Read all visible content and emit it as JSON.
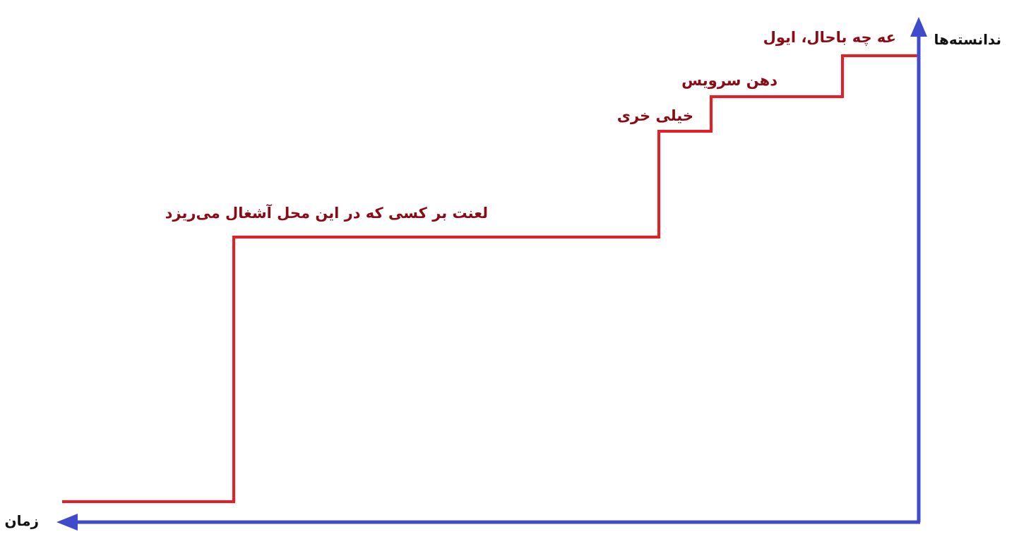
{
  "axes": {
    "y_label": "ندانسته‌ها",
    "x_label": "زمان",
    "color": "#3f4bcc"
  },
  "steps": {
    "color": "#ec1c24",
    "label_color": "#8b0a14",
    "labels": [
      "لعنت بر کسی که در  این محل آشغال می‌ریزد",
      "خیلی خری",
      "دهن سرویس",
      "عه چه باحال، ایول"
    ]
  }
}
